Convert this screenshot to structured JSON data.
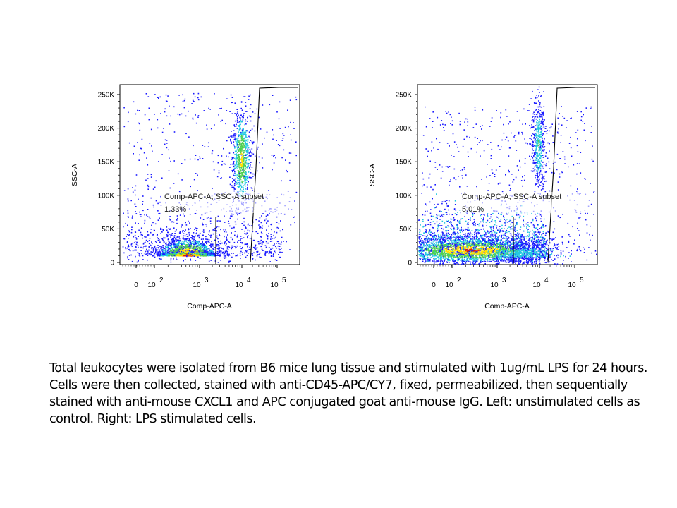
{
  "chart_data": [
    {
      "type": "scatter",
      "title": "",
      "xlabel": "Comp-APC-A",
      "ylabel": "SSC-A",
      "x_scale": "log",
      "y_ticks": [
        "0",
        "50K",
        "100K",
        "150K",
        "200K",
        "250K"
      ],
      "y_tick_values": [
        0,
        50000,
        100000,
        150000,
        200000,
        250000
      ],
      "x_ticks": [
        {
          "base": "0",
          "exp": ""
        },
        {
          "base": "10",
          "exp": "2"
        },
        {
          "base": "10",
          "exp": "3"
        },
        {
          "base": "10",
          "exp": "4"
        },
        {
          "base": "10",
          "exp": "5"
        }
      ],
      "x_tick_values": [
        0,
        100,
        1000,
        10000,
        100000
      ],
      "ylim": [
        0,
        262144
      ],
      "gate": {
        "label": "Comp-APC-A, SSC-A subset",
        "percent": "1.33%"
      },
      "populations": [
        {
          "name": "",
          "x_center": 700,
          "y_center": 12000,
          "count": 1400
        },
        {
          "name": "",
          "x_center": 9000,
          "y_center": 140000,
          "count": 650
        }
      ]
    },
    {
      "type": "scatter",
      "title": "",
      "xlabel": "Comp-APC-A",
      "ylabel": "SSC-A",
      "x_scale": "log",
      "y_ticks": [
        "0",
        "50K",
        "100K",
        "150K",
        "200K",
        "250K"
      ],
      "y_tick_values": [
        0,
        50000,
        100000,
        150000,
        200000,
        250000
      ],
      "x_ticks": [
        {
          "base": "0",
          "exp": ""
        },
        {
          "base": "10",
          "exp": "2"
        },
        {
          "base": "10",
          "exp": "3"
        },
        {
          "base": "10",
          "exp": "4"
        },
        {
          "base": "10",
          "exp": "5"
        }
      ],
      "x_tick_values": [
        0,
        100,
        1000,
        10000,
        100000
      ],
      "ylim": [
        0,
        262144
      ],
      "gate": {
        "label": "Comp-APC-A, SSC-A subset",
        "percent": "5.01%"
      },
      "populations": [
        {
          "name": "",
          "x_center": 150,
          "y_center": 20000,
          "count": 2600
        },
        {
          "name": "",
          "x_center": 9000,
          "y_center": 170000,
          "count": 380
        }
      ]
    }
  ],
  "caption": "Total leukocytes were isolated from B6 mice lung tissue and stimulated with 1ug/mL LPS for 24 hours. Cells were then collected, stained with anti-CD45-APC/CY7, fixed, permeabilized, then sequentially stained with anti-mouse CXCL1 and APC conjugated goat anti-mouse IgG.  Left:  unstimulated cells as control. Right: LPS stimulated cells.",
  "colors": {
    "low": "#1a1aff",
    "mid": "#22c8e0",
    "midhigh": "#50d050",
    "high": "#ffe000",
    "peak": "#e02000"
  }
}
